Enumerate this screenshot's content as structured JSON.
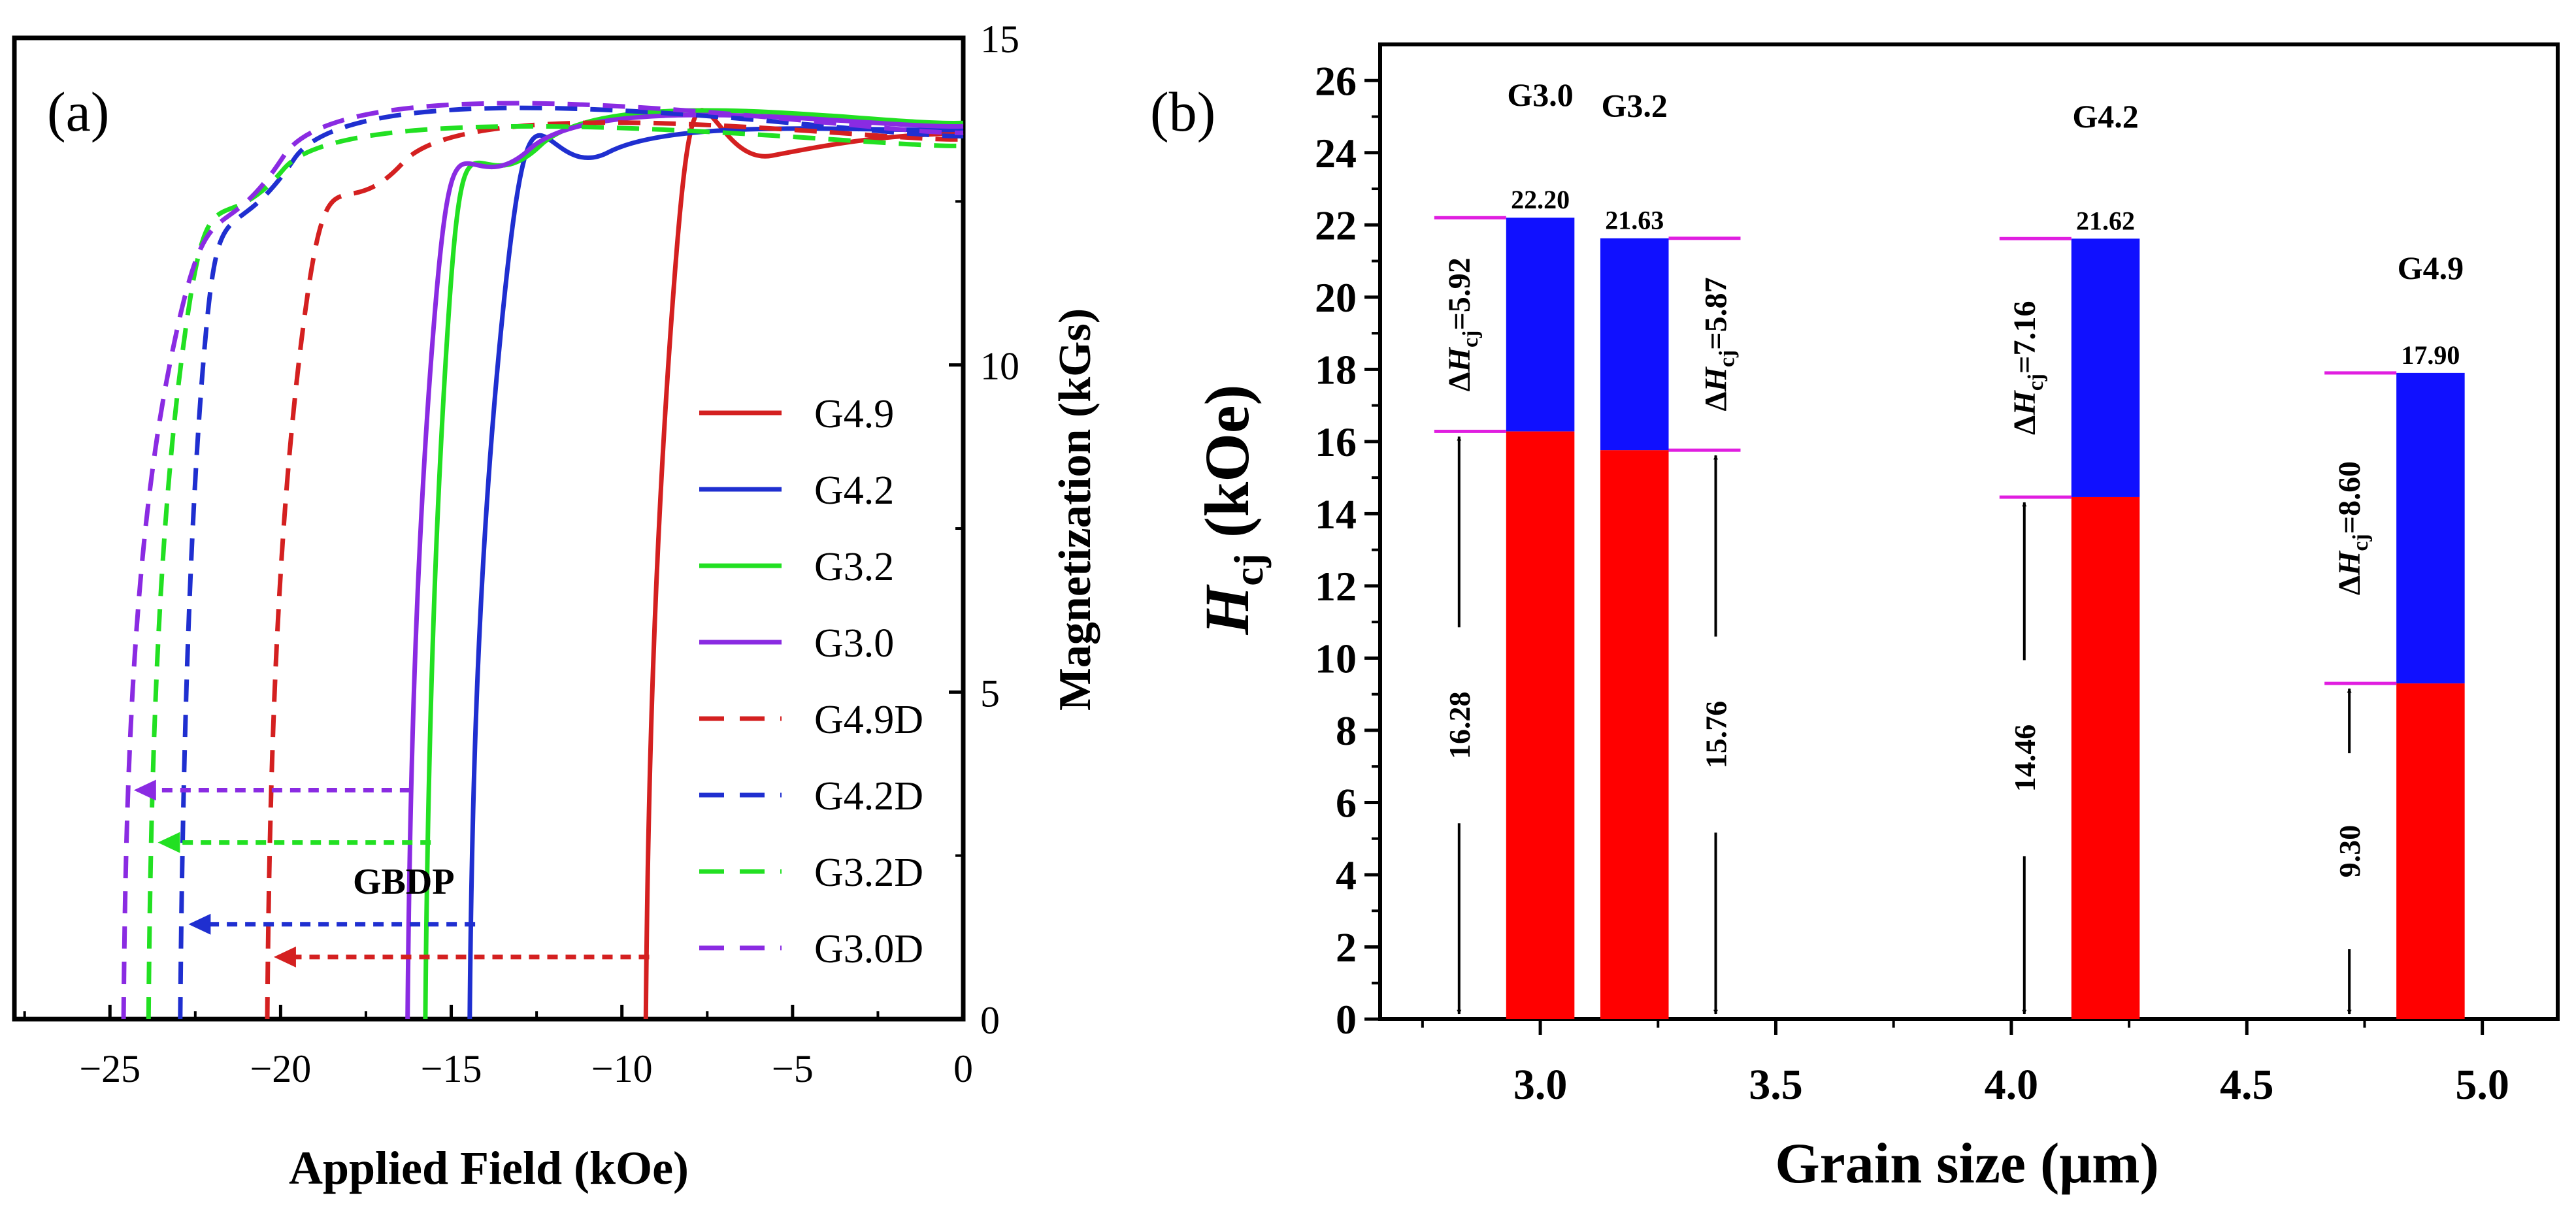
{
  "chart_data": [
    {
      "panel": "(a)",
      "type": "line",
      "xlabel": "Applied Field (kOe)",
      "ylabel": "Magnetization (kGs)",
      "xlim": [
        -27.8,
        0
      ],
      "ylim": [
        0,
        15
      ],
      "xticks": [
        -25,
        -20,
        -15,
        -10,
        -5,
        0
      ],
      "yticks": [
        0,
        5,
        10,
        15
      ],
      "annotation": "GBDP",
      "legend_position": "right",
      "series": [
        {
          "name": "G4.9",
          "color": "#d42020",
          "dashed": false,
          "hc": -9.3,
          "knee": [
            -7.6,
            13.0
          ],
          "ms": 13.55
        },
        {
          "name": "G4.2",
          "color": "#1f2fd0",
          "dashed": false,
          "hc": -14.46,
          "knee": [
            -12.4,
            12.7
          ],
          "ms": 13.6
        },
        {
          "name": "G3.2",
          "color": "#22e022",
          "dashed": false,
          "hc": -15.76,
          "knee": [
            -14.4,
            12.35
          ],
          "ms": 13.7
        },
        {
          "name": "G3.0",
          "color": "#8a2be2",
          "dashed": false,
          "hc": -16.28,
          "knee": [
            -14.7,
            12.35
          ],
          "ms": 13.65
        },
        {
          "name": "G4.9D",
          "color": "#d42020",
          "dashed": true,
          "hc": -20.39,
          "knee": [
            -18.4,
            11.95
          ],
          "ms": 13.45
        },
        {
          "name": "G4.2D",
          "color": "#1f2fd0",
          "dashed": true,
          "hc": -22.94,
          "knee": [
            -21.6,
            11.6
          ],
          "ms": 13.5
        },
        {
          "name": "G3.2D",
          "color": "#22e022",
          "dashed": true,
          "hc": -23.87,
          "knee": [
            -21.9,
            11.75
          ],
          "ms": 13.35
        },
        {
          "name": "G3.0D",
          "color": "#8a2be2",
          "dashed": true,
          "hc": -24.6,
          "knee": [
            -21.9,
            11.6
          ],
          "ms": 13.55
        }
      ],
      "arrows": [
        {
          "color": "#8a2be2",
          "from": -16.2,
          "to": -24.3,
          "y": 3.5
        },
        {
          "color": "#22e022",
          "from": -15.6,
          "to": -23.6,
          "y": 2.7
        },
        {
          "color": "#1f2fd0",
          "from": -14.3,
          "to": -22.7,
          "y": 1.45
        },
        {
          "color": "#d42020",
          "from": -9.2,
          "to": -20.2,
          "y": 0.95
        }
      ]
    },
    {
      "panel": "(b)",
      "type": "bar",
      "xlabel": "Grain size (μm)",
      "ylabel_main": "H",
      "ylabel_sub": "cj",
      "ylabel_unit": " (kOe)",
      "xlim": [
        2.66,
        5.16
      ],
      "ylim": [
        0,
        27
      ],
      "xticks": [
        3.0,
        3.5,
        4.0,
        4.5,
        5.0
      ],
      "yticks": [
        0,
        2,
        4,
        6,
        8,
        10,
        12,
        14,
        16,
        18,
        20,
        22,
        24,
        26
      ],
      "bar_width": 0.145,
      "colors": {
        "base": "#ff0000",
        "increment": "#1010ff",
        "marker": "#e01ee0"
      },
      "bars": [
        {
          "name": "G3.0",
          "x": 3.0,
          "base": 16.28,
          "total": 22.2,
          "total_label": "22.20",
          "base_label": "16.28",
          "delta_label": "=5.92",
          "marker_side": "left",
          "name_y": 25.3
        },
        {
          "name": "G3.2",
          "x": 3.2,
          "base": 15.76,
          "total": 21.63,
          "total_label": "21.63",
          "base_label": "15.76",
          "delta_label": "=5.87",
          "marker_side": "right",
          "name_y": 25.0
        },
        {
          "name": "G4.2",
          "x": 4.2,
          "base": 14.46,
          "total": 21.62,
          "total_label": "21.62",
          "base_label": "14.46",
          "delta_label": "=7.16",
          "marker_side": "left",
          "name_y": 24.7
        },
        {
          "name": "G4.9",
          "x": 4.89,
          "base": 9.3,
          "total": 17.9,
          "total_label": "17.90",
          "base_label": "9.30",
          "delta_label": "=8.60",
          "marker_side": "left",
          "name_y": 20.5
        }
      ]
    }
  ]
}
